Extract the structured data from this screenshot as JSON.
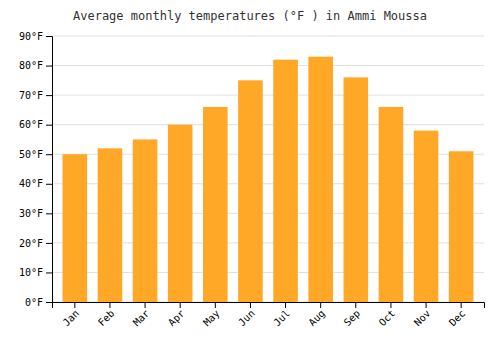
{
  "chart_data": {
    "type": "bar",
    "title": "Average monthly temperatures (°F ) in Ammi Moussa",
    "categories": [
      "Jan",
      "Feb",
      "Mar",
      "Apr",
      "May",
      "Jun",
      "Jul",
      "Aug",
      "Sep",
      "Oct",
      "Nov",
      "Dec"
    ],
    "values": [
      50,
      52,
      55,
      60,
      66,
      75,
      82,
      83,
      76,
      66,
      58,
      51
    ],
    "color": "#FFA726",
    "ylim": [
      0,
      90
    ],
    "yticks": [
      {
        "value": 0,
        "label": "0°F"
      },
      {
        "value": 10,
        "label": "10°F"
      },
      {
        "value": 20,
        "label": "20°F"
      },
      {
        "value": 30,
        "label": "30°F"
      },
      {
        "value": 40,
        "label": "40°F"
      },
      {
        "value": 50,
        "label": "50°F"
      },
      {
        "value": 60,
        "label": "60°F"
      },
      {
        "value": 70,
        "label": "70°F"
      },
      {
        "value": 80,
        "label": "80°F"
      },
      {
        "value": 90,
        "label": "90°F"
      }
    ],
    "grid": true
  }
}
